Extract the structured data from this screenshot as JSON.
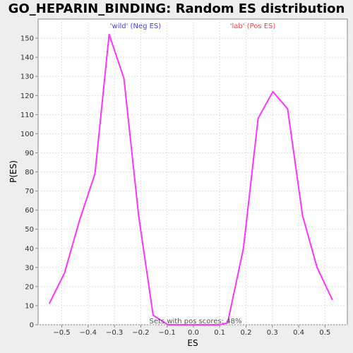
{
  "chart_data": {
    "type": "line",
    "title": "GO_HEPARIN_BINDING: Random ES distribution",
    "xlabel": "ES",
    "ylabel": "P(ES)",
    "xlim": [
      -0.59,
      0.585
    ],
    "ylim": [
      0,
      160
    ],
    "x_ticks": [
      -0.5,
      -0.4,
      -0.3,
      -0.2,
      -0.1,
      0.0,
      0.1,
      0.2,
      0.3,
      0.4,
      0.5
    ],
    "x_tick_labels": [
      "−0.5",
      "−0.4",
      "−0.3",
      "−0.2",
      "−0.1",
      "0.0",
      "0.1",
      "0.2",
      "0.3",
      "0.4",
      "0.5"
    ],
    "y_ticks": [
      0,
      10,
      20,
      30,
      40,
      50,
      60,
      70,
      80,
      90,
      100,
      110,
      120,
      130,
      140,
      150
    ],
    "grid": true,
    "series": [
      {
        "color": "#ff33ff",
        "x": [
          -0.548,
          -0.49,
          -0.432,
          -0.374,
          -0.32,
          -0.264,
          -0.208,
          -0.153,
          -0.097,
          0.1,
          0.13,
          0.19,
          0.246,
          0.302,
          0.358,
          0.415,
          0.47,
          0.528
        ],
        "y": [
          11,
          27,
          55,
          79,
          152,
          129,
          57,
          5,
          0,
          0,
          1,
          40,
          108,
          122,
          113,
          57,
          30,
          13
        ]
      }
    ],
    "annotations": [
      {
        "text": "'wild' (Neg ES)",
        "color": "#4040ff"
      },
      {
        "text": "'lab' (Pos ES)",
        "color": "#ff4040"
      },
      {
        "text": "Sets with pos scores: 48%",
        "color": "#555555"
      }
    ]
  }
}
